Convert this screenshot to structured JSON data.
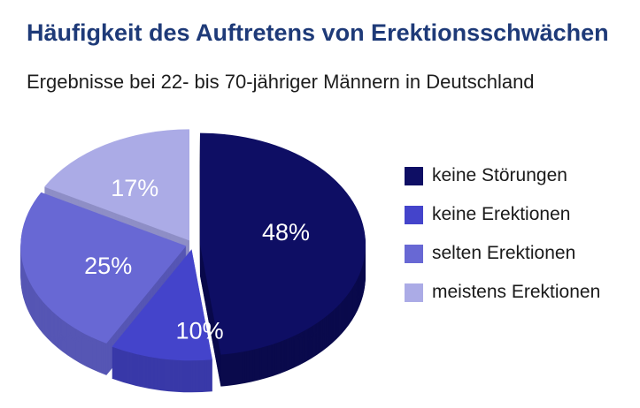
{
  "chart_data": {
    "type": "pie",
    "style": "3d-exploded",
    "title": "Häufigkeit des Auftretens von Erektionsschwächen",
    "subtitle": "Ergebnisse bei 22- bis 70-jähriger Männern in Deutschland",
    "labels": [
      "keine Störungen",
      "keine Erektionen",
      "selten Erektionen",
      "meistens Erektionen"
    ],
    "values": [
      48,
      10,
      25,
      17
    ],
    "value_labels": [
      "48%",
      "10%",
      "25%",
      "17%"
    ],
    "colors": [
      "#0e0e64",
      "#4444cb",
      "#6868d4",
      "#ababe6"
    ],
    "side_colors": [
      "#0a0a4c",
      "#3939a8",
      "#5656b4",
      "#8e8ec6"
    ],
    "label_color": "#ffffff",
    "start_angle_deg": -90,
    "direction": "clockwise",
    "legend_position": "right",
    "title_color": "#1e3a78",
    "subtitle_color": "#1d1d1d"
  }
}
